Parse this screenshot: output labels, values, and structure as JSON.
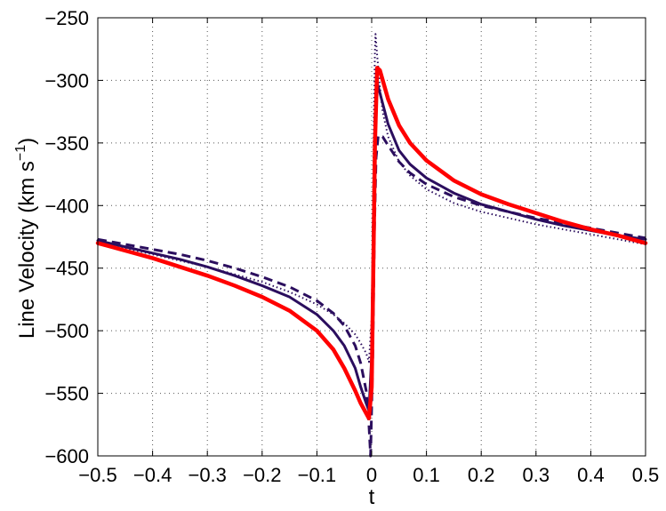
{
  "chart_data": {
    "type": "line",
    "title": "",
    "xlabel": "t",
    "ylabel": {
      "base": "Line Velocity (km s",
      "sup": "−1",
      "close": ")"
    },
    "xlim": [
      -0.5,
      0.5
    ],
    "ylim": [
      -600,
      -250
    ],
    "grid": true,
    "x_ticks": [
      -0.5,
      -0.4,
      -0.3,
      -0.2,
      -0.1,
      0,
      0.1,
      0.2,
      0.3,
      0.4,
      0.5
    ],
    "x_tick_labels": [
      "−0.5",
      "−0.4",
      "−0.3",
      "−0.2",
      "−0.1",
      "0",
      "0.1",
      "0.2",
      "0.3",
      "0.4",
      "0.5"
    ],
    "y_ticks": [
      -250,
      -300,
      -350,
      -400,
      -450,
      -500,
      -550,
      -600
    ],
    "y_tick_labels": [
      "−250",
      "−300",
      "−350",
      "−400",
      "−450",
      "−500",
      "−550",
      "−600"
    ],
    "series": [
      {
        "style": "solid-thick",
        "color": "#ff0000",
        "points": [
          [
            -0.5,
            -430
          ],
          [
            -0.45,
            -436
          ],
          [
            -0.4,
            -442
          ],
          [
            -0.35,
            -449
          ],
          [
            -0.3,
            -456
          ],
          [
            -0.25,
            -464
          ],
          [
            -0.2,
            -473
          ],
          [
            -0.15,
            -484
          ],
          [
            -0.1,
            -500
          ],
          [
            -0.07,
            -515
          ],
          [
            -0.05,
            -530
          ],
          [
            -0.03,
            -548
          ],
          [
            -0.02,
            -558
          ],
          [
            -0.01,
            -566
          ],
          [
            -0.005,
            -570
          ],
          [
            0.0,
            -545
          ],
          [
            0.003,
            -450
          ],
          [
            0.006,
            -350
          ],
          [
            0.01,
            -290
          ],
          [
            0.015,
            -292
          ],
          [
            0.03,
            -315
          ],
          [
            0.05,
            -336
          ],
          [
            0.07,
            -350
          ],
          [
            0.1,
            -364
          ],
          [
            0.15,
            -380
          ],
          [
            0.2,
            -391
          ],
          [
            0.25,
            -399
          ],
          [
            0.3,
            -406
          ],
          [
            0.35,
            -413
          ],
          [
            0.4,
            -419
          ],
          [
            0.45,
            -424
          ],
          [
            0.5,
            -430
          ]
        ]
      },
      {
        "style": "solid",
        "color": "#2b0e5e",
        "points": [
          [
            -0.5,
            -428
          ],
          [
            -0.45,
            -433
          ],
          [
            -0.4,
            -438
          ],
          [
            -0.35,
            -443
          ],
          [
            -0.3,
            -449
          ],
          [
            -0.25,
            -456
          ],
          [
            -0.2,
            -464
          ],
          [
            -0.15,
            -473
          ],
          [
            -0.1,
            -487
          ],
          [
            -0.07,
            -500
          ],
          [
            -0.05,
            -512
          ],
          [
            -0.03,
            -530
          ],
          [
            -0.02,
            -545
          ],
          [
            -0.01,
            -558
          ],
          [
            -0.005,
            -564
          ],
          [
            0.0,
            -520
          ],
          [
            0.003,
            -420
          ],
          [
            0.006,
            -330
          ],
          [
            0.009,
            -300
          ],
          [
            0.015,
            -310
          ],
          [
            0.03,
            -335
          ],
          [
            0.05,
            -356
          ],
          [
            0.07,
            -367
          ],
          [
            0.1,
            -378
          ],
          [
            0.15,
            -390
          ],
          [
            0.2,
            -399
          ],
          [
            0.25,
            -405
          ],
          [
            0.3,
            -411
          ],
          [
            0.35,
            -416
          ],
          [
            0.4,
            -420
          ],
          [
            0.45,
            -424
          ],
          [
            0.5,
            -427
          ]
        ]
      },
      {
        "style": "dashed",
        "color": "#2b0e5e",
        "points": [
          [
            -0.5,
            -427
          ],
          [
            -0.45,
            -431
          ],
          [
            -0.4,
            -435
          ],
          [
            -0.35,
            -439
          ],
          [
            -0.3,
            -444
          ],
          [
            -0.25,
            -450
          ],
          [
            -0.2,
            -457
          ],
          [
            -0.15,
            -465
          ],
          [
            -0.1,
            -476
          ],
          [
            -0.07,
            -486
          ],
          [
            -0.05,
            -496
          ],
          [
            -0.03,
            -512
          ],
          [
            -0.02,
            -526
          ],
          [
            -0.01,
            -548
          ],
          [
            -0.005,
            -575
          ],
          [
            -0.002,
            -600
          ],
          [
            0.002,
            -520
          ],
          [
            0.005,
            -420
          ],
          [
            0.008,
            -362
          ],
          [
            0.012,
            -344
          ],
          [
            0.02,
            -345
          ],
          [
            0.03,
            -352
          ],
          [
            0.05,
            -365
          ],
          [
            0.07,
            -374
          ],
          [
            0.1,
            -383
          ],
          [
            0.15,
            -393
          ],
          [
            0.2,
            -400
          ],
          [
            0.25,
            -405
          ],
          [
            0.3,
            -410
          ],
          [
            0.35,
            -414
          ],
          [
            0.4,
            -418
          ],
          [
            0.45,
            -422
          ],
          [
            0.5,
            -426
          ]
        ]
      },
      {
        "style": "dotted",
        "color": "#2b0e5e",
        "points": [
          [
            -0.5,
            -430
          ],
          [
            -0.45,
            -434
          ],
          [
            -0.4,
            -439
          ],
          [
            -0.35,
            -444
          ],
          [
            -0.3,
            -449
          ],
          [
            -0.25,
            -455
          ],
          [
            -0.2,
            -461
          ],
          [
            -0.15,
            -469
          ],
          [
            -0.1,
            -479
          ],
          [
            -0.07,
            -487
          ],
          [
            -0.05,
            -494
          ],
          [
            -0.03,
            -503
          ],
          [
            -0.02,
            -510
          ],
          [
            -0.01,
            -518
          ],
          [
            -0.005,
            -525
          ],
          [
            0.0,
            -490
          ],
          [
            0.002,
            -420
          ],
          [
            0.004,
            -330
          ],
          [
            0.006,
            -275
          ],
          [
            0.007,
            -263
          ],
          [
            0.01,
            -280
          ],
          [
            0.015,
            -305
          ],
          [
            0.02,
            -325
          ],
          [
            0.03,
            -345
          ],
          [
            0.05,
            -365
          ],
          [
            0.07,
            -376
          ],
          [
            0.1,
            -387
          ],
          [
            0.15,
            -398
          ],
          [
            0.2,
            -405
          ],
          [
            0.25,
            -410
          ],
          [
            0.3,
            -415
          ],
          [
            0.35,
            -419
          ],
          [
            0.4,
            -423
          ],
          [
            0.45,
            -427
          ],
          [
            0.5,
            -431
          ]
        ]
      }
    ]
  }
}
